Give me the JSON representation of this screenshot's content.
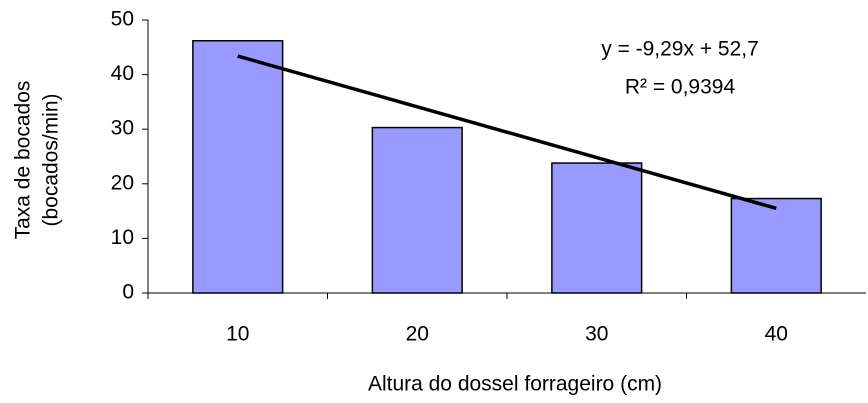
{
  "chart_data": {
    "type": "bar",
    "categories": [
      "10",
      "20",
      "30",
      "40"
    ],
    "values": [
      46.2,
      30.3,
      23.8,
      17.3
    ],
    "color": "#9999ff",
    "trendline": {
      "values": [
        43.4,
        34.1,
        24.8,
        15.5
      ],
      "color": "#000000"
    },
    "annotations": [
      "y = -9,29x + 52,7",
      "R² = 0,9394"
    ],
    "xlabel": "Altura do dossel forrageiro (cm)",
    "ylabel": [
      "Taxa de bocados",
      "(bocados/min)"
    ],
    "ylim": [
      0,
      50
    ],
    "yticks": [
      0,
      10,
      20,
      30,
      40,
      50
    ],
    "grid": false
  }
}
